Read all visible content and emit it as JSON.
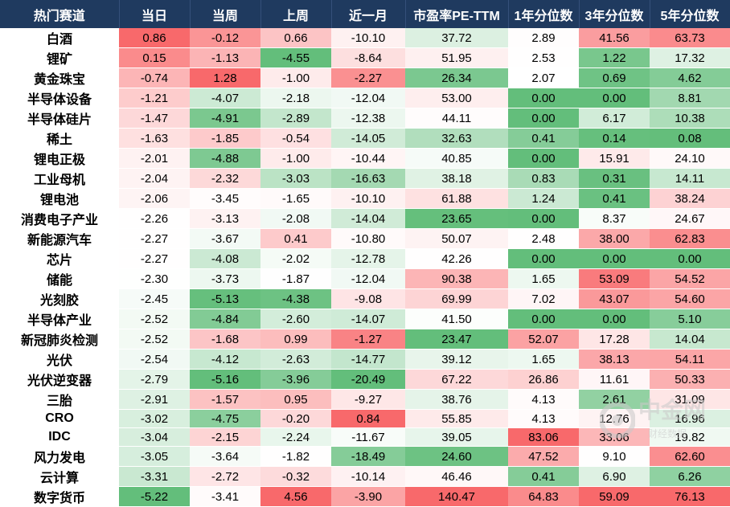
{
  "headers": [
    "热门赛道",
    "当日",
    "当周",
    "上周",
    "近一月",
    "市盈率PE-TTM",
    "1年分位数",
    "3年分位数",
    "5年分位数"
  ],
  "rows": [
    [
      "白酒",
      "0.86",
      "-0.12",
      "0.66",
      "-10.10",
      "37.72",
      "2.89",
      "41.56",
      "63.73"
    ],
    [
      "锂矿",
      "0.15",
      "-1.13",
      "-4.55",
      "-8.64",
      "51.95",
      "2.53",
      "1.22",
      "17.32"
    ],
    [
      "黄金珠宝",
      "-0.74",
      "1.28",
      "-1.00",
      "-2.27",
      "26.34",
      "2.07",
      "0.69",
      "4.62"
    ],
    [
      "半导体设备",
      "-1.21",
      "-4.07",
      "-2.18",
      "-12.04",
      "53.00",
      "0.00",
      "0.00",
      "8.81"
    ],
    [
      "半导体硅片",
      "-1.47",
      "-4.91",
      "-2.89",
      "-12.38",
      "44.11",
      "0.00",
      "6.17",
      "10.38"
    ],
    [
      "稀土",
      "-1.63",
      "-1.85",
      "-0.54",
      "-14.05",
      "32.63",
      "0.41",
      "0.14",
      "0.08"
    ],
    [
      "锂电正极",
      "-2.01",
      "-4.88",
      "-1.00",
      "-10.44",
      "40.85",
      "0.00",
      "15.91",
      "24.10"
    ],
    [
      "工业母机",
      "-2.04",
      "-2.32",
      "-3.03",
      "-16.63",
      "38.18",
      "0.83",
      "0.31",
      "14.11"
    ],
    [
      "锂电池",
      "-2.06",
      "-3.45",
      "-1.65",
      "-10.10",
      "61.88",
      "1.24",
      "0.41",
      "38.24"
    ],
    [
      "消费电子产业",
      "-2.26",
      "-3.13",
      "-2.08",
      "-14.04",
      "23.65",
      "0.00",
      "8.37",
      "24.67"
    ],
    [
      "新能源汽车",
      "-2.27",
      "-3.67",
      "0.41",
      "-10.80",
      "50.07",
      "2.48",
      "38.00",
      "62.83"
    ],
    [
      "芯片",
      "-2.27",
      "-4.08",
      "-2.02",
      "-12.78",
      "42.26",
      "0.00",
      "0.00",
      "0.00"
    ],
    [
      "储能",
      "-2.30",
      "-3.73",
      "-1.87",
      "-12.04",
      "90.38",
      "1.65",
      "53.09",
      "54.52"
    ],
    [
      "光刻胶",
      "-2.45",
      "-5.13",
      "-4.38",
      "-9.08",
      "69.99",
      "7.02",
      "43.07",
      "54.60"
    ],
    [
      "半导体产业",
      "-2.52",
      "-4.84",
      "-2.60",
      "-14.07",
      "41.50",
      "0.00",
      "0.00",
      "5.10"
    ],
    [
      "新冠肺炎检测",
      "-2.52",
      "-1.68",
      "0.99",
      "-1.27",
      "23.47",
      "52.07",
      "17.28",
      "14.04"
    ],
    [
      "光伏",
      "-2.54",
      "-4.12",
      "-2.63",
      "-14.77",
      "39.12",
      "1.65",
      "38.13",
      "54.11"
    ],
    [
      "光伏逆变器",
      "-2.79",
      "-5.16",
      "-3.96",
      "-20.49",
      "67.22",
      "26.86",
      "11.61",
      "50.33"
    ],
    [
      "三胎",
      "-2.91",
      "-1.57",
      "0.95",
      "-9.27",
      "38.76",
      "4.13",
      "2.61",
      "31.09"
    ],
    [
      "CRO",
      "-3.02",
      "-4.75",
      "-0.20",
      "0.84",
      "55.85",
      "4.13",
      "12.76",
      "16.96"
    ],
    [
      "IDC",
      "-3.04",
      "-2.15",
      "-2.24",
      "-11.67",
      "39.05",
      "83.06",
      "33.06",
      "19.82"
    ],
    [
      "风力发电",
      "-3.05",
      "-3.64",
      "-1.82",
      "-18.49",
      "24.60",
      "47.52",
      "9.10",
      "62.60"
    ],
    [
      "云计算",
      "-3.31",
      "-2.72",
      "-0.32",
      "-10.14",
      "46.46",
      "0.41",
      "6.90",
      "6.26"
    ],
    [
      "数字货币",
      "-5.22",
      "-3.41",
      "4.56",
      "-3.90",
      "140.47",
      "64.83",
      "59.09",
      "76.13"
    ]
  ],
  "colors": {
    "header_bg": "#1f3a5f",
    "red": "#f8696b",
    "green": "#63be7b",
    "white": "#ffffff"
  },
  "watermark": {
    "text": "中金网",
    "sub": "财经数据"
  }
}
